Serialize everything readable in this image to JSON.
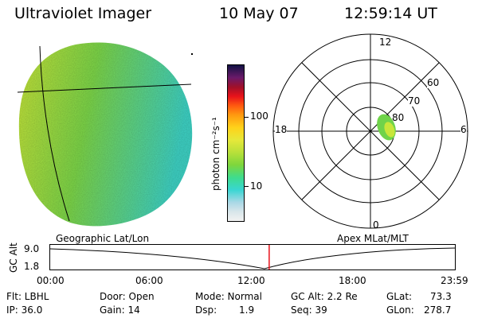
{
  "header": {
    "title": "Ultraviolet Imager",
    "date": "10 May 07",
    "time": "12:59:14 UT"
  },
  "colorbar": {
    "label": "photon cm⁻²s⁻¹",
    "ticks": [
      "100",
      "10"
    ],
    "colors": [
      "#f2f2f2",
      "#39d6d2",
      "#7ed63c",
      "#e6e83a",
      "#ff9a10",
      "#e8121a",
      "#121244"
    ]
  },
  "polar_plot": {
    "mlt_labels": [
      "12",
      "18",
      "6",
      "0"
    ],
    "lat_labels": [
      "60",
      "70",
      "80"
    ],
    "caption": "Apex MLat/MLT"
  },
  "earth_image": {
    "caption": "Geographic Lat/Lon",
    "colors": {
      "disk_left": "#c9e83a",
      "disk_mid": "#7fda4a",
      "disk_right": "#3fd6c8"
    }
  },
  "altitude_plot": {
    "ylabel": "GC Alt",
    "yticks": [
      "9.0",
      "1.8"
    ],
    "xticks": [
      "00:00",
      "06:00",
      "12:00",
      "18:00",
      "23:59"
    ],
    "marker_time_fraction": 0.5411,
    "marker_color": "#e8121a"
  },
  "info": {
    "flt": "Flt: LBHL",
    "ip": "IP: 36.0",
    "door": "Door: Open",
    "gain": "Gain: 14",
    "mode": "Mode: Normal",
    "dsp_label": "Dsp:",
    "dsp_value": "1.9",
    "gc_alt": "GC Alt: 2.2 Re",
    "seq": "Seq: 39",
    "glat_label": "GLat:",
    "glat_value": "73.3",
    "glon_label": "GLon:",
    "glon_value": "278.7"
  }
}
